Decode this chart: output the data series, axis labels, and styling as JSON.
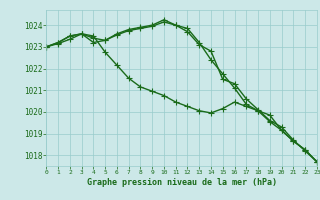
{
  "x": [
    0,
    1,
    2,
    3,
    4,
    5,
    6,
    7,
    8,
    9,
    10,
    11,
    12,
    13,
    14,
    15,
    16,
    17,
    18,
    19,
    20,
    21,
    22,
    23
  ],
  "line1": [
    1023.0,
    1023.2,
    1023.5,
    1023.6,
    1023.2,
    1023.3,
    1023.6,
    1023.8,
    1023.9,
    1024.0,
    1024.25,
    1024.0,
    1023.7,
    1023.1,
    1022.8,
    1021.5,
    1021.3,
    1020.6,
    1020.1,
    1019.6,
    1019.3,
    1018.7,
    1018.2,
    1017.7
  ],
  "line2": [
    1023.0,
    1023.2,
    1023.5,
    1023.6,
    1023.4,
    1023.3,
    1023.55,
    1023.75,
    1023.85,
    1023.95,
    1024.15,
    1024.0,
    1023.85,
    1023.2,
    1022.4,
    1021.75,
    1021.1,
    1020.35,
    1020.05,
    1019.85,
    1019.15,
    1018.65,
    1018.25,
    1017.7
  ],
  "line3": [
    1023.0,
    1023.15,
    1023.35,
    1023.6,
    1023.5,
    1022.75,
    1022.15,
    1021.55,
    1021.15,
    1020.95,
    1020.75,
    1020.45,
    1020.25,
    1020.05,
    1019.95,
    1020.15,
    1020.45,
    1020.25,
    1020.05,
    1019.55,
    1019.15,
    1018.65,
    1018.25,
    1017.7
  ],
  "ylim": [
    1017.5,
    1024.7
  ],
  "yticks": [
    1018,
    1019,
    1020,
    1021,
    1022,
    1023,
    1024
  ],
  "xticks": [
    0,
    1,
    2,
    3,
    4,
    5,
    6,
    7,
    8,
    9,
    10,
    11,
    12,
    13,
    14,
    15,
    16,
    17,
    18,
    19,
    20,
    21,
    22,
    23
  ],
  "xlim": [
    0,
    23
  ],
  "line_color": "#1a6b1a",
  "bg_color": "#cce8e8",
  "grid_color": "#99cccc",
  "xlabel": "Graphe pression niveau de la mer (hPa)",
  "xlabel_color": "#1a6b1a",
  "tick_color": "#1a6b1a",
  "marker": "+",
  "markersize": 4,
  "linewidth": 1.0
}
